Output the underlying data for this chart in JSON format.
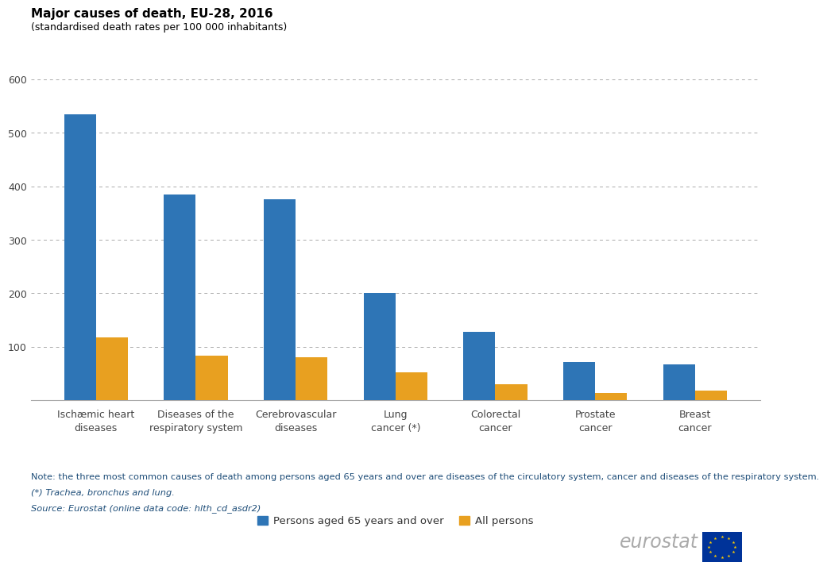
{
  "title": "Major causes of death, EU-28, 2016",
  "subtitle": "(standardised death rates per 100 000 inhabitants)",
  "categories": [
    "Ischæmic heart\ndiseases",
    "Diseases of the\nrespiratory system",
    "Cerebrovascular\ndiseases",
    "Lung\ncancer (*)",
    "Colorectal\ncancer",
    "Prostate\ncancer",
    "Breast\ncancer"
  ],
  "series_65plus": [
    535,
    385,
    376,
    200,
    128,
    72,
    67
  ],
  "series_all": [
    118,
    83,
    80,
    53,
    30,
    14,
    18
  ],
  "color_65plus": "#2E75B6",
  "color_all": "#E8A020",
  "ylim": [
    0,
    620
  ],
  "yticks": [
    100,
    200,
    300,
    400,
    500,
    600
  ],
  "legend_label_65plus": "Persons aged 65 years and over",
  "legend_label_all": "All persons",
  "note_line1": "Note: the three most common causes of death among persons aged 65 years and over are diseases of the circulatory system, cancer and diseases of the respiratory system.",
  "note_line2": "(*) Trachea, bronchus and lung.",
  "note_line3": "Source: Eurostat (online data code: hlth_cd_asdr2)",
  "bar_width": 0.32,
  "grid_color": "#AAAAAA",
  "background_color": "#FFFFFF",
  "title_color": "#000000",
  "note_color": "#1F4E79"
}
